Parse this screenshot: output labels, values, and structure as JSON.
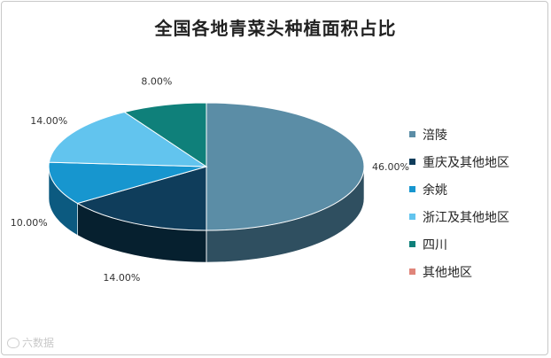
{
  "chart_data": {
    "type": "pie",
    "title": "全国各地青菜头种植面积占比",
    "slices": [
      {
        "label": "涪陵",
        "value": 46.0,
        "display": "46.00%",
        "color": "#5b8da6",
        "side": "#2f4f60"
      },
      {
        "label": "重庆及其他地区",
        "value": 14.0,
        "display": "14.00%",
        "color": "#0f3d5b",
        "side": "#06202f"
      },
      {
        "label": "余姚",
        "value": 10.0,
        "display": "10.00%",
        "color": "#1796cf",
        "side": "#0c5a80"
      },
      {
        "label": "浙江及其他地区",
        "value": 14.0,
        "display": "14.00%",
        "color": "#62c4ee",
        "side": "#3a8cb2"
      },
      {
        "label": "四川",
        "value": 8.0,
        "display": "8.00%",
        "color": "#0f807a",
        "side": "#07504b"
      },
      {
        "label": "其他地区",
        "value": 0.0,
        "display": "",
        "color": "#e0857a",
        "side": "#b05a50"
      }
    ],
    "legend_position": "right"
  },
  "watermark": "六数据"
}
